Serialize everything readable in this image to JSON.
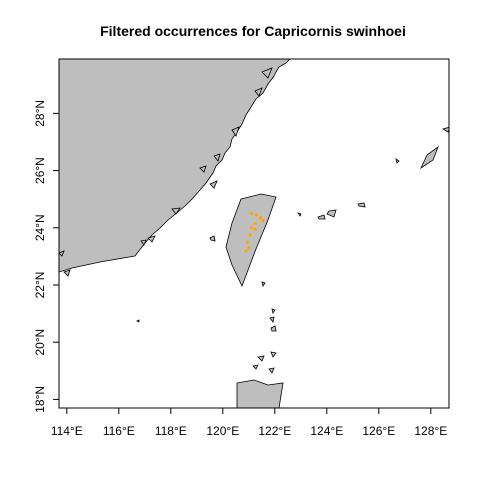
{
  "title": "Filtered occurrences for Capricornis swinhoei",
  "colors": {
    "land": "#bebebe",
    "water": "#ffffff",
    "border": "#000000",
    "occurrence": "#ffa500"
  },
  "map": {
    "extent": {
      "lon_min": 113.7,
      "lon_max": 128.7,
      "lat_min": 17.7,
      "lat_max": 29.9
    },
    "x_ticks": [
      {
        "value": 114,
        "label": "114°E"
      },
      {
        "value": 116,
        "label": "116°E"
      },
      {
        "value": 118,
        "label": "118°E"
      },
      {
        "value": 120,
        "label": "120°E"
      },
      {
        "value": 122,
        "label": "122°E"
      },
      {
        "value": 124,
        "label": "124°E"
      },
      {
        "value": 126,
        "label": "126°E"
      },
      {
        "value": 128,
        "label": "128°E"
      }
    ],
    "y_ticks": [
      {
        "value": 18,
        "label": "18°N"
      },
      {
        "value": 20,
        "label": "20°N"
      },
      {
        "value": 22,
        "label": "22°N"
      },
      {
        "value": 24,
        "label": "24°N"
      },
      {
        "value": 26,
        "label": "26°N"
      },
      {
        "value": 28,
        "label": "28°N"
      }
    ],
    "occurrences": [
      {
        "lon": 121.1,
        "lat": 24.5
      },
      {
        "lon": 121.3,
        "lat": 24.45
      },
      {
        "lon": 121.45,
        "lat": 24.35
      },
      {
        "lon": 121.55,
        "lat": 24.25
      },
      {
        "lon": 121.25,
        "lat": 24.15
      },
      {
        "lon": 121.1,
        "lat": 24.0
      },
      {
        "lon": 121.25,
        "lat": 23.95
      },
      {
        "lon": 121.05,
        "lat": 23.75
      },
      {
        "lon": 120.95,
        "lat": 23.5
      },
      {
        "lon": 121.0,
        "lat": 23.3
      },
      {
        "lon": 120.9,
        "lat": 23.2
      }
    ]
  }
}
